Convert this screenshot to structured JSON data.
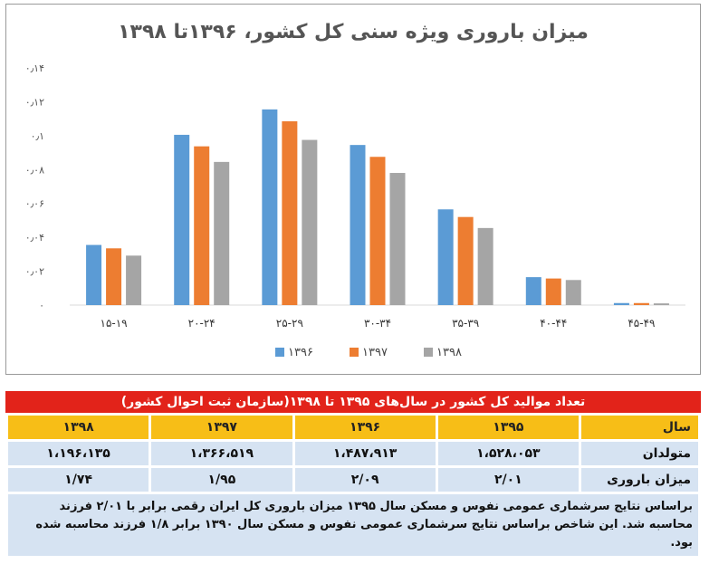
{
  "chart_data": {
    "type": "bar",
    "title": "میزان باروری ویژه سنی کل کشور، ۱۳۹۶تا ۱۳۹۸",
    "categories": [
      "۱۵-۱۹",
      "۲۰-۲۴",
      "۲۵-۲۹",
      "۳۰-۳۴",
      "۳۵-۳۹",
      "۴۰-۴۴",
      "۴۵-۴۹"
    ],
    "series": [
      {
        "name": "۱۳۹۶",
        "color": "#5b9bd5",
        "values": [
          0.0355,
          0.1005,
          0.1155,
          0.0945,
          0.0565,
          0.0165,
          0.0012
        ]
      },
      {
        "name": "۱۳۹۷",
        "color": "#ed7d31",
        "values": [
          0.0335,
          0.0937,
          0.1085,
          0.0875,
          0.052,
          0.0157,
          0.0012
        ]
      },
      {
        "name": "۱۳۹۸",
        "color": "#a5a5a5",
        "values": [
          0.0292,
          0.0845,
          0.0975,
          0.078,
          0.0455,
          0.0148,
          0.001
        ]
      }
    ],
    "yticks": [
      "۰",
      "۰٫۰۲",
      "۰٫۰۴",
      "۰٫۰۶",
      "۰٫۰۸",
      "۰٫۱",
      "۰٫۱۲",
      "۰٫۱۴"
    ],
    "ylim": [
      0,
      0.14
    ],
    "legend_position": "bottom",
    "grid": false
  },
  "table": {
    "title": "تعداد موالید کل کشور در سال‌های ۱۳۹۵ تا ۱۳۹۸(سازمان ثبت احوال کشور)",
    "header": [
      "سال",
      "۱۳۹۵",
      "۱۳۹۶",
      "۱۳۹۷",
      "۱۳۹۸"
    ],
    "rows": [
      [
        "متولدان",
        "۱،۵۲۸،۰۵۳",
        "۱،۴۸۷،۹۱۳",
        "۱،۳۶۶،۵۱۹",
        "۱،۱۹۶،۱۳۵"
      ],
      [
        "میزان باروری",
        "۲/۰۱",
        "۲/۰۹",
        "۱/۹۵",
        "۱/۷۴"
      ]
    ]
  },
  "note": "براساس نتایج سرشماری عمومی نفوس و مسکن سال ۱۳۹۵ میزان باروری کل ایران رقمی برابر با ۲/۰۱ فرزند محاسبه شد. این شاخص براساس نتایج سرشماری عمومی نفوس و مسکن سال ۱۳۹۰ برابر ۱/۸ فرزند محاسبه شده بود."
}
